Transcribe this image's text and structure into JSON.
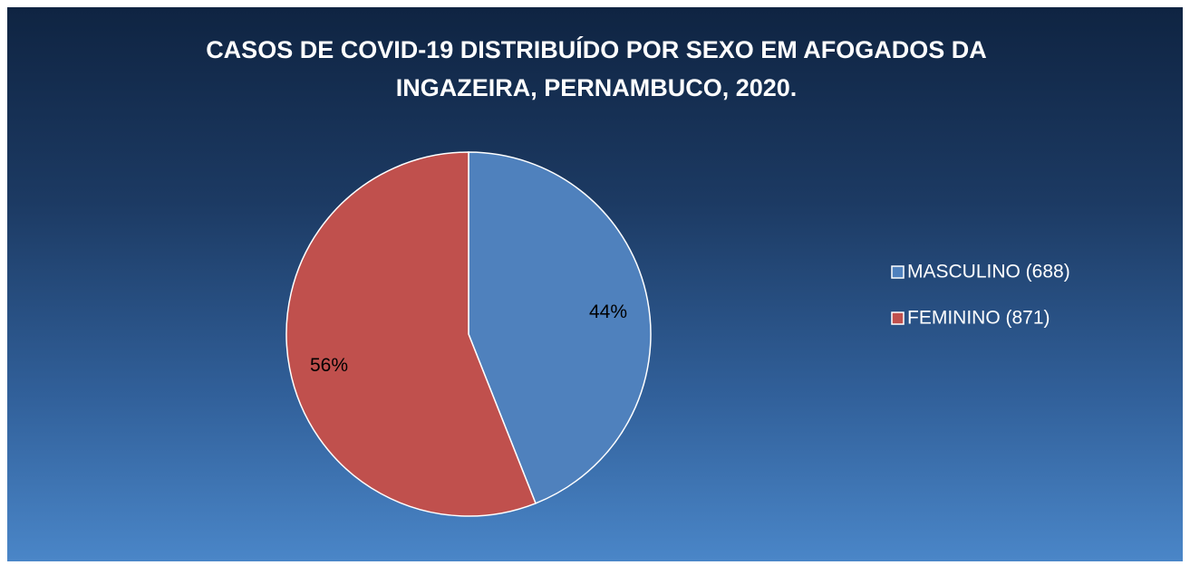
{
  "chart_data": {
    "type": "pie",
    "title": "CASOS DE COVID-19 DISTRIBUÍDO POR SEXO EM AFOGADOS DA INGAZEIRA, PERNAMBUCO, 2020.",
    "categories": [
      "MASCULINO (688)",
      "FEMININO (871)"
    ],
    "values": [
      44,
      56
    ],
    "value_labels": [
      "44%",
      "56%"
    ],
    "colors": [
      "#4f81bd",
      "#c0504d"
    ],
    "legend": "right"
  }
}
